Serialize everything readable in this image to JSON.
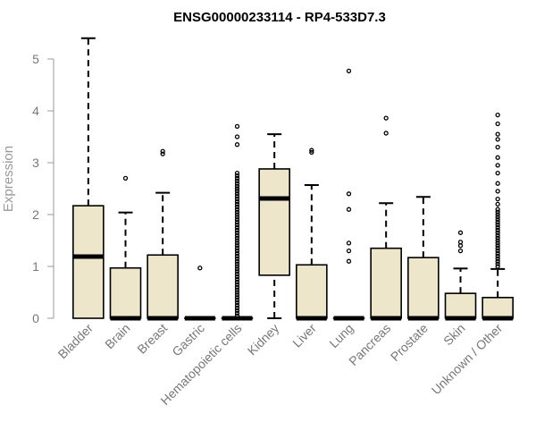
{
  "chart_data": {
    "type": "box",
    "title": "ENSG00000233114 - RP4-533D7.3",
    "ylabel": "Expression",
    "xlabel": "",
    "ylim": [
      0,
      5.5
    ],
    "yticks": [
      0,
      1,
      2,
      3,
      4,
      5
    ],
    "colors": {
      "box_fill": "#ede6cb",
      "stroke": "#000000",
      "axis": "#999999",
      "text": "#777777"
    },
    "boxes": [
      {
        "category": "Bladder",
        "whisker_low": 0,
        "q1": 0,
        "median": 1.19,
        "q3": 2.17,
        "whisker_high": 5.4,
        "outliers": []
      },
      {
        "category": "Brain",
        "whisker_low": 0,
        "q1": 0,
        "median": 0,
        "q3": 0.97,
        "whisker_high": 2.04,
        "outliers": [
          2.7
        ]
      },
      {
        "category": "Breast",
        "whisker_low": 0,
        "q1": 0,
        "median": 0,
        "q3": 1.22,
        "whisker_high": 2.42,
        "outliers": [
          3.17,
          3.22
        ]
      },
      {
        "category": "Gastric",
        "whisker_low": 0,
        "q1": 0,
        "median": 0,
        "q3": 0,
        "whisker_high": 0,
        "outliers": [
          0.97
        ]
      },
      {
        "category": "Hematopoietic cells",
        "whisker_low": 0,
        "q1": 0,
        "median": 0,
        "q3": 0,
        "whisker_high": 0,
        "outliers": [
          0.05,
          0.1,
          0.15,
          0.2,
          0.25,
          0.3,
          0.35,
          0.4,
          0.45,
          0.5,
          0.55,
          0.6,
          0.65,
          0.7,
          0.75,
          0.8,
          0.85,
          0.9,
          0.95,
          1.0,
          1.05,
          1.1,
          1.15,
          1.2,
          1.25,
          1.3,
          1.35,
          1.4,
          1.45,
          1.5,
          1.55,
          1.6,
          1.65,
          1.7,
          1.75,
          1.8,
          1.85,
          1.9,
          1.95,
          2.0,
          2.05,
          2.1,
          2.15,
          2.2,
          2.25,
          2.3,
          2.35,
          2.4,
          2.45,
          2.5,
          2.55,
          2.6,
          2.65,
          2.7,
          2.75,
          2.8,
          2.5,
          3.35,
          3.5,
          3.7
        ]
      },
      {
        "category": "Kidney",
        "whisker_low": 0,
        "q1": 0.83,
        "median": 2.31,
        "q3": 2.88,
        "whisker_high": 3.55,
        "outliers": []
      },
      {
        "category": "Liver",
        "whisker_low": 0,
        "q1": 0,
        "median": 0,
        "q3": 1.03,
        "whisker_high": 2.57,
        "outliers": [
          3.2,
          3.24
        ]
      },
      {
        "category": "Lung",
        "whisker_low": 0,
        "q1": 0,
        "median": 0,
        "q3": 0,
        "whisker_high": 0,
        "outliers": [
          1.1,
          1.3,
          1.45,
          2.1,
          2.4,
          4.77
        ]
      },
      {
        "category": "Pancreas",
        "whisker_low": 0,
        "q1": 0,
        "median": 0,
        "q3": 1.35,
        "whisker_high": 2.22,
        "outliers": [
          3.57,
          3.86
        ]
      },
      {
        "category": "Prostate",
        "whisker_low": 0,
        "q1": 0,
        "median": 0,
        "q3": 1.17,
        "whisker_high": 2.34,
        "outliers": []
      },
      {
        "category": "Skin",
        "whisker_low": 0,
        "q1": 0,
        "median": 0,
        "q3": 0.48,
        "whisker_high": 0.96,
        "outliers": [
          1.3,
          1.4,
          1.47,
          1.65
        ]
      },
      {
        "category": "Unknown / Other",
        "whisker_low": 0,
        "q1": 0,
        "median": 0,
        "q3": 0.4,
        "whisker_high": 0.95,
        "outliers": [
          1.0,
          1.05,
          1.1,
          1.15,
          1.2,
          1.25,
          1.3,
          1.35,
          1.4,
          1.45,
          1.5,
          1.55,
          1.6,
          1.65,
          1.7,
          1.75,
          1.8,
          1.85,
          1.9,
          1.95,
          2.0,
          2.05,
          2.1,
          2.2,
          2.3,
          2.45,
          2.6,
          2.8,
          2.95,
          3.1,
          3.3,
          3.45,
          3.55,
          3.75,
          3.92
        ]
      }
    ]
  }
}
